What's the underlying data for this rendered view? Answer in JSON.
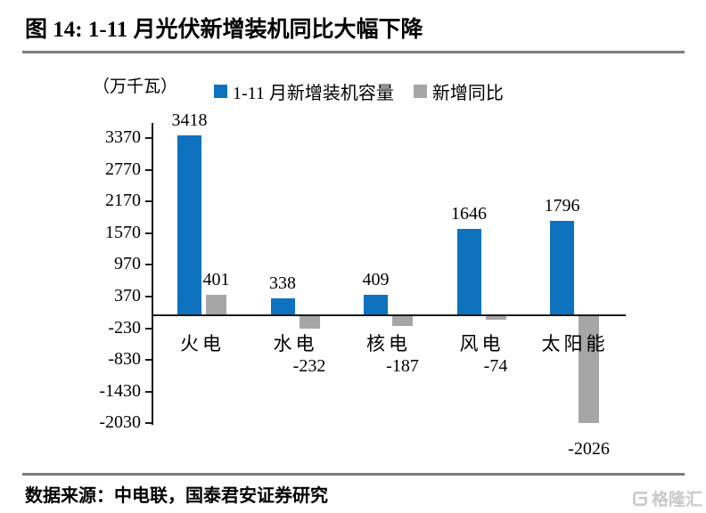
{
  "title": "图 14: 1-11 月光伏新增装机同比大幅下降",
  "unit_label": "（万千瓦）",
  "legend": [
    {
      "label": "1-11 月新增装机容量",
      "color": "#0E72BE"
    },
    {
      "label": "新增同比",
      "color": "#A6A6A6"
    }
  ],
  "source": "数据来源：中电联，国泰君安证券研究",
  "watermark": {
    "icon": "gelonghui-logo-icon",
    "text": "格隆汇",
    "color": "#c9c9c9"
  },
  "chart_data": {
    "type": "bar",
    "title": "图 14: 1-11 月光伏新增装机同比大幅下降",
    "ylabel": "（万千瓦）",
    "categories": [
      "火电",
      "水电",
      "核电",
      "风电",
      "太阳能"
    ],
    "series": [
      {
        "name": "1-11 月新增装机容量",
        "color": "#0E72BE",
        "values": [
          3418,
          338,
          409,
          1646,
          1796
        ]
      },
      {
        "name": "新增同比",
        "color": "#A6A6A6",
        "values": [
          401,
          -232,
          -187,
          -74,
          -2026
        ]
      }
    ],
    "yticks": [
      3370,
      2770,
      2170,
      1570,
      970,
      370,
      -230,
      -830,
      -1430,
      -2030
    ],
    "ytick_step": 600,
    "grid": false,
    "legend_position": "top",
    "axis_color": "#1a1a1a"
  }
}
